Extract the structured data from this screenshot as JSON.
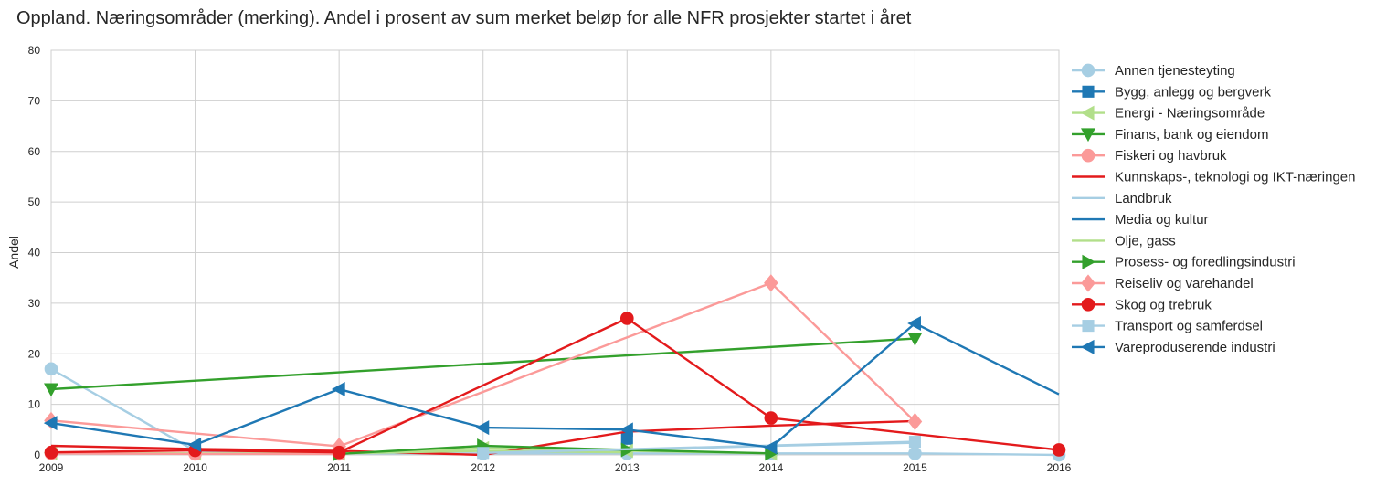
{
  "chart_data": {
    "type": "line",
    "title": "Oppland. Næringsområder (merking). Andel i prosent av sum merket beløp for alle NFR prosjekter startet i året",
    "xlabel": "",
    "ylabel": "Andel",
    "xlim": [
      2009,
      2016
    ],
    "ylim": [
      0,
      80
    ],
    "xticks": [
      "2009",
      "2010",
      "2011",
      "2012",
      "2013",
      "2014",
      "2015",
      "2016"
    ],
    "yticks": [
      "0",
      "10",
      "20",
      "30",
      "40",
      "50",
      "60",
      "70",
      "80"
    ],
    "grid": true,
    "legend_position": "right-outside",
    "series": [
      {
        "name": "Annen tjenesteyting",
        "color": "#a6cee3",
        "marker": "circle",
        "points": [
          [
            2009,
            17
          ],
          [
            2010,
            0.8
          ],
          [
            2011,
            0.3
          ],
          [
            2012,
            0.3
          ],
          [
            2013,
            0.3
          ],
          [
            2014,
            0.3
          ],
          [
            2015,
            0.3
          ],
          [
            2016,
            0
          ]
        ]
      },
      {
        "name": "Bygg, anlegg og bergverk",
        "color": "#1f78b4",
        "marker": "square",
        "points": [
          [
            2013,
            3.2
          ]
        ]
      },
      {
        "name": "Energi - Næringsområde",
        "color": "#b2df8a",
        "marker": "triangle-left",
        "points": [
          [
            2009,
            0.4
          ],
          [
            2010,
            0.3
          ],
          [
            2011,
            0.3
          ],
          [
            2012,
            1.3
          ],
          [
            2013,
            0.8
          ],
          [
            2014,
            0.3
          ]
        ]
      },
      {
        "name": "Finans, bank og eiendom",
        "color": "#33a02c",
        "marker": "triangle-down",
        "points": [
          [
            2009,
            13
          ],
          [
            2015,
            23
          ]
        ]
      },
      {
        "name": "Fiskeri og havbruk",
        "color": "#fb9a99",
        "marker": "circle",
        "points": [
          [
            2009,
            0.3
          ],
          [
            2010,
            0.2
          ],
          [
            2011,
            0.2
          ]
        ]
      },
      {
        "name": "Kunnskaps-, teknologi og IKT-næringen",
        "color": "#e31a1c",
        "marker": "none",
        "points": [
          [
            2009,
            1.8
          ],
          [
            2010,
            1.2
          ],
          [
            2011,
            0.8
          ],
          [
            2012,
            0.0
          ],
          [
            2013,
            4.6
          ],
          [
            2014,
            5.8
          ],
          [
            2015,
            6.7
          ]
        ]
      },
      {
        "name": "Landbruk",
        "color": "#a6cee3",
        "marker": "none",
        "points": [
          [
            2012,
            0.5
          ],
          [
            2013,
            1.0
          ],
          [
            2014,
            1.8
          ],
          [
            2015,
            2.4
          ]
        ]
      },
      {
        "name": "Media og kultur",
        "color": "#1f78b4",
        "marker": "none",
        "points": [
          [
            2015,
            26
          ],
          [
            2016,
            12
          ]
        ]
      },
      {
        "name": "Olje, gass",
        "color": "#b2df8a",
        "marker": "none",
        "points": [
          [
            2011,
            0.3
          ],
          [
            2012,
            0.8
          ],
          [
            2013,
            0.5
          ]
        ]
      },
      {
        "name": "Prosess- og foredlingsindustri",
        "color": "#33a02c",
        "marker": "triangle-right",
        "points": [
          [
            2011,
            0.2
          ],
          [
            2012,
            1.8
          ],
          [
            2013,
            1.0
          ],
          [
            2014,
            0.3
          ]
        ]
      },
      {
        "name": "Reiseliv og varehandel",
        "color": "#fb9a99",
        "marker": "diamond",
        "points": [
          [
            2009,
            6.8
          ],
          [
            2011,
            1.7
          ],
          [
            2014,
            34
          ],
          [
            2015,
            6.6
          ]
        ]
      },
      {
        "name": "Skog og trebruk",
        "color": "#e31a1c",
        "marker": "circle",
        "points": [
          [
            2009,
            0.5
          ],
          [
            2010,
            0.9
          ],
          [
            2011,
            0.5
          ],
          [
            2013,
            27
          ],
          [
            2014,
            7.3
          ],
          [
            2016,
            1.0
          ]
        ]
      },
      {
        "name": "Transport og samferdsel",
        "color": "#a6cee3",
        "marker": "square",
        "points": [
          [
            2012,
            0.4
          ],
          [
            2015,
            2.6
          ]
        ]
      },
      {
        "name": "Vareproduserende industri",
        "color": "#1f78b4",
        "marker": "triangle-left",
        "points": [
          [
            2009,
            6.3
          ],
          [
            2010,
            2.0
          ],
          [
            2011,
            13
          ],
          [
            2012,
            5.4
          ],
          [
            2013,
            5.0
          ],
          [
            2014,
            1.5
          ],
          [
            2015,
            26
          ]
        ]
      }
    ]
  }
}
